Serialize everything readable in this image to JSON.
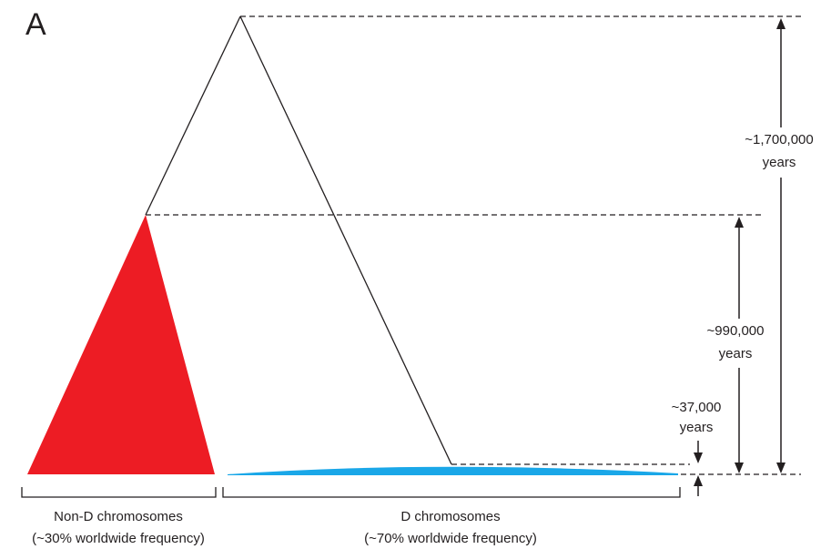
{
  "panel_label": "A",
  "clades": {
    "non_d": {
      "label": "Non-D chromosomes",
      "frequency": "(~30% worldwide frequency)",
      "color": "#ed1c24"
    },
    "d": {
      "label": "D chromosomes",
      "frequency": "(~70% worldwide frequency)",
      "color": "#1aa7e8"
    }
  },
  "time_annotations": [
    {
      "value": "~1,700,000",
      "unit": "years"
    },
    {
      "value": "~990,000",
      "unit": "years"
    },
    {
      "value": "~37,000",
      "unit": "years"
    }
  ],
  "colors": {
    "line": "#231f20",
    "background": "#ffffff"
  }
}
